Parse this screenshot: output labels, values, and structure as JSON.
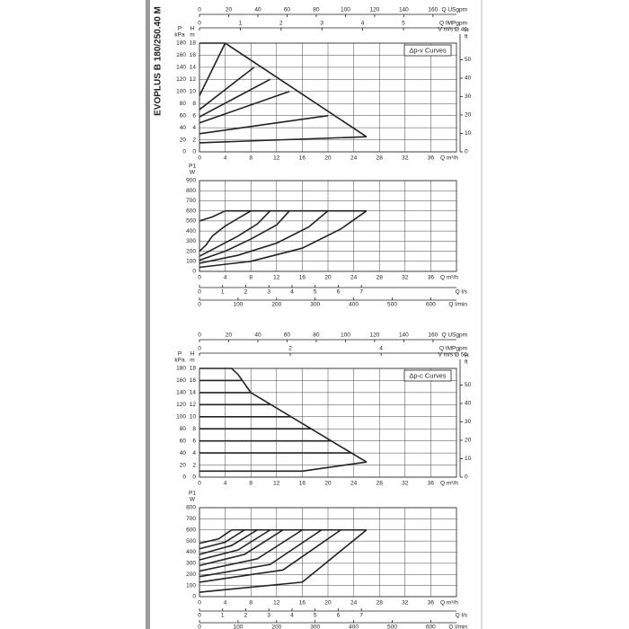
{
  "title": "EVOPLUS B 180/250.40 M",
  "chart_data": [
    {
      "type": "line",
      "annotation": "Δp-v Curves",
      "color": "#222",
      "grid": true,
      "xlim": [
        0,
        40
      ],
      "xticks": [
        0,
        4,
        8,
        12,
        16,
        20,
        24,
        28,
        32,
        36
      ],
      "xlabel": "Q m³/h",
      "ylabel": "H",
      "yunit": "m",
      "ylim": [
        0,
        18
      ],
      "yticks": [
        0,
        2,
        4,
        6,
        8,
        10,
        12,
        14,
        16,
        18
      ],
      "pressure_axis": {
        "label": "P",
        "unit": "kPa",
        "lim": [
          0,
          180
        ],
        "ticks": [
          0,
          20,
          40,
          60,
          80,
          100,
          120,
          140,
          160,
          180
        ]
      },
      "y2label": "H",
      "y2unit": "ft",
      "y2lim": [
        0,
        59
      ],
      "y2ticks": [
        0,
        10,
        20,
        30,
        40,
        50
      ],
      "top_axes": [
        {
          "labels": [
            "Q USgpm"
          ],
          "lim": [
            0,
            176.1
          ],
          "ticks": [
            0,
            20,
            40,
            60,
            80,
            100,
            120,
            140,
            160
          ]
        },
        {
          "labels": [
            "Q IMPgpm",
            "V m/s Ø 40"
          ],
          "lim": [
            0,
            6.3
          ],
          "ticks": [
            0,
            1,
            2,
            3,
            4,
            5
          ]
        }
      ],
      "series": [
        {
          "x": [
            0,
            4,
            26
          ],
          "values": [
            18,
            18,
            2.5
          ]
        },
        {
          "x": [
            0,
            4
          ],
          "values": [
            9.3,
            18
          ]
        },
        {
          "x": [
            0,
            8.5
          ],
          "values": [
            7,
            14
          ]
        },
        {
          "x": [
            0,
            11
          ],
          "values": [
            5.8,
            12
          ]
        },
        {
          "x": [
            0,
            14
          ],
          "values": [
            4.8,
            10
          ]
        },
        {
          "x": [
            0,
            20
          ],
          "values": [
            3,
            6
          ]
        },
        {
          "x": [
            0,
            26
          ],
          "values": [
            1.5,
            2.5
          ]
        }
      ]
    },
    {
      "type": "line",
      "color": "#222",
      "grid": true,
      "xlim": [
        0,
        40
      ],
      "xticks": [
        0,
        4,
        8,
        12,
        16,
        20,
        24,
        28,
        32,
        36
      ],
      "xlabel": "Q m³/h",
      "ylabel": "P1",
      "yunit": "W",
      "ylim": [
        0,
        900
      ],
      "yticks": [
        0,
        100,
        200,
        300,
        400,
        500,
        600,
        700,
        800,
        900
      ],
      "bottom_axes": [
        {
          "labels": [
            "Q l/s"
          ],
          "lim": [
            0,
            11.11
          ],
          "ticks": [
            0,
            1,
            2,
            3,
            4,
            5,
            6,
            7
          ]
        },
        {
          "labels": [
            "Q l/min"
          ],
          "lim": [
            0,
            666.7
          ],
          "ticks": [
            0,
            100,
            200,
            300,
            400,
            500,
            600
          ]
        }
      ],
      "series": [
        {
          "x": [
            4,
            26
          ],
          "values": [
            600,
            600
          ]
        },
        {
          "x": [
            0,
            2,
            4
          ],
          "values": [
            500,
            540,
            600
          ]
        },
        {
          "x": [
            0,
            1,
            2,
            4,
            8
          ],
          "values": [
            200,
            260,
            350,
            450,
            600
          ]
        },
        {
          "x": [
            0,
            3,
            6,
            9,
            11
          ],
          "values": [
            150,
            250,
            350,
            470,
            600
          ]
        },
        {
          "x": [
            0,
            4,
            8,
            12,
            14
          ],
          "values": [
            110,
            200,
            320,
            460,
            600
          ]
        },
        {
          "x": [
            0,
            6,
            12,
            17,
            20
          ],
          "values": [
            80,
            160,
            280,
            440,
            600
          ]
        },
        {
          "x": [
            0,
            8,
            16,
            22,
            26
          ],
          "values": [
            40,
            100,
            230,
            420,
            600
          ]
        }
      ]
    },
    {
      "type": "line",
      "annotation": "Δp-c Curves",
      "color": "#222",
      "grid": true,
      "xlim": [
        0,
        40
      ],
      "xticks": [
        0,
        4,
        8,
        12,
        16,
        20,
        24,
        28,
        32,
        36
      ],
      "xlabel": "Q m³/h",
      "ylabel": "H",
      "yunit": "m",
      "ylim": [
        0,
        18
      ],
      "yticks": [
        0,
        2,
        4,
        6,
        8,
        10,
        12,
        14,
        16,
        18
      ],
      "pressure_axis": {
        "label": "P",
        "unit": "kPa",
        "lim": [
          0,
          180
        ],
        "ticks": [
          0,
          20,
          40,
          60,
          80,
          100,
          120,
          140,
          160,
          180
        ]
      },
      "y2label": "H",
      "y2unit": "ft",
      "y2lim": [
        0,
        59
      ],
      "y2ticks": [
        0,
        10,
        20,
        30,
        40,
        50
      ],
      "top_axes": [
        {
          "labels": [
            "Q USgpm"
          ],
          "lim": [
            0,
            176.1
          ],
          "ticks": [
            0,
            20,
            40,
            60,
            80,
            100,
            120,
            140,
            160
          ]
        },
        {
          "labels": [
            "Q IMPgpm",
            "V m/s Ø 50"
          ],
          "lim": [
            0,
            5.66
          ],
          "ticks": [
            0,
            2,
            4
          ]
        }
      ],
      "series": [
        {
          "x": [
            0,
            5,
            6,
            8,
            26
          ],
          "values": [
            18,
            18,
            17,
            14,
            2.5
          ]
        },
        {
          "x": [
            0,
            6.5
          ],
          "values": [
            16,
            16
          ]
        },
        {
          "x": [
            0,
            8
          ],
          "values": [
            14,
            14
          ]
        },
        {
          "x": [
            0,
            11.1
          ],
          "values": [
            12,
            12
          ]
        },
        {
          "x": [
            0,
            14.3
          ],
          "values": [
            10,
            10
          ]
        },
        {
          "x": [
            0,
            17.4
          ],
          "values": [
            8,
            8
          ]
        },
        {
          "x": [
            0,
            20.5
          ],
          "values": [
            6,
            6
          ]
        },
        {
          "x": [
            0,
            23.7
          ],
          "values": [
            4,
            4
          ]
        },
        {
          "x": [
            0,
            16,
            26
          ],
          "values": [
            1,
            1,
            2.5
          ]
        }
      ]
    },
    {
      "type": "line",
      "color": "#222",
      "grid": true,
      "xlim": [
        0,
        40
      ],
      "xticks": [
        0,
        4,
        8,
        12,
        16,
        20,
        24,
        28,
        32,
        36
      ],
      "xlabel": "Q m³/h",
      "ylabel": "P1",
      "yunit": "W",
      "ylim": [
        0,
        800
      ],
      "yticks": [
        0,
        100,
        200,
        300,
        400,
        500,
        600,
        700,
        800
      ],
      "bottom_axes": [
        {
          "labels": [
            "Q l/s"
          ],
          "lim": [
            0,
            11.11
          ],
          "ticks": [
            0,
            1,
            2,
            3,
            4,
            5,
            6,
            7
          ]
        },
        {
          "labels": [
            "Q l/min"
          ],
          "lim": [
            0,
            666.7
          ],
          "ticks": [
            0,
            100,
            200,
            300,
            400,
            500,
            600
          ]
        }
      ],
      "series": [
        {
          "x": [
            5,
            26
          ],
          "values": [
            600,
            600
          ]
        },
        {
          "x": [
            0,
            3,
            5
          ],
          "values": [
            480,
            520,
            600
          ]
        },
        {
          "x": [
            0,
            4,
            7
          ],
          "values": [
            430,
            490,
            600
          ]
        },
        {
          "x": [
            0,
            5,
            9
          ],
          "values": [
            380,
            460,
            600
          ]
        },
        {
          "x": [
            0,
            6,
            11
          ],
          "values": [
            330,
            420,
            600
          ]
        },
        {
          "x": [
            0,
            7,
            13
          ],
          "values": [
            280,
            380,
            600
          ]
        },
        {
          "x": [
            0,
            9,
            16
          ],
          "values": [
            230,
            340,
            600
          ]
        },
        {
          "x": [
            0,
            11,
            19
          ],
          "values": [
            180,
            290,
            600
          ]
        },
        {
          "x": [
            0,
            13,
            22
          ],
          "values": [
            130,
            240,
            600
          ]
        },
        {
          "x": [
            0,
            16,
            26
          ],
          "values": [
            40,
            130,
            600
          ]
        }
      ]
    }
  ]
}
